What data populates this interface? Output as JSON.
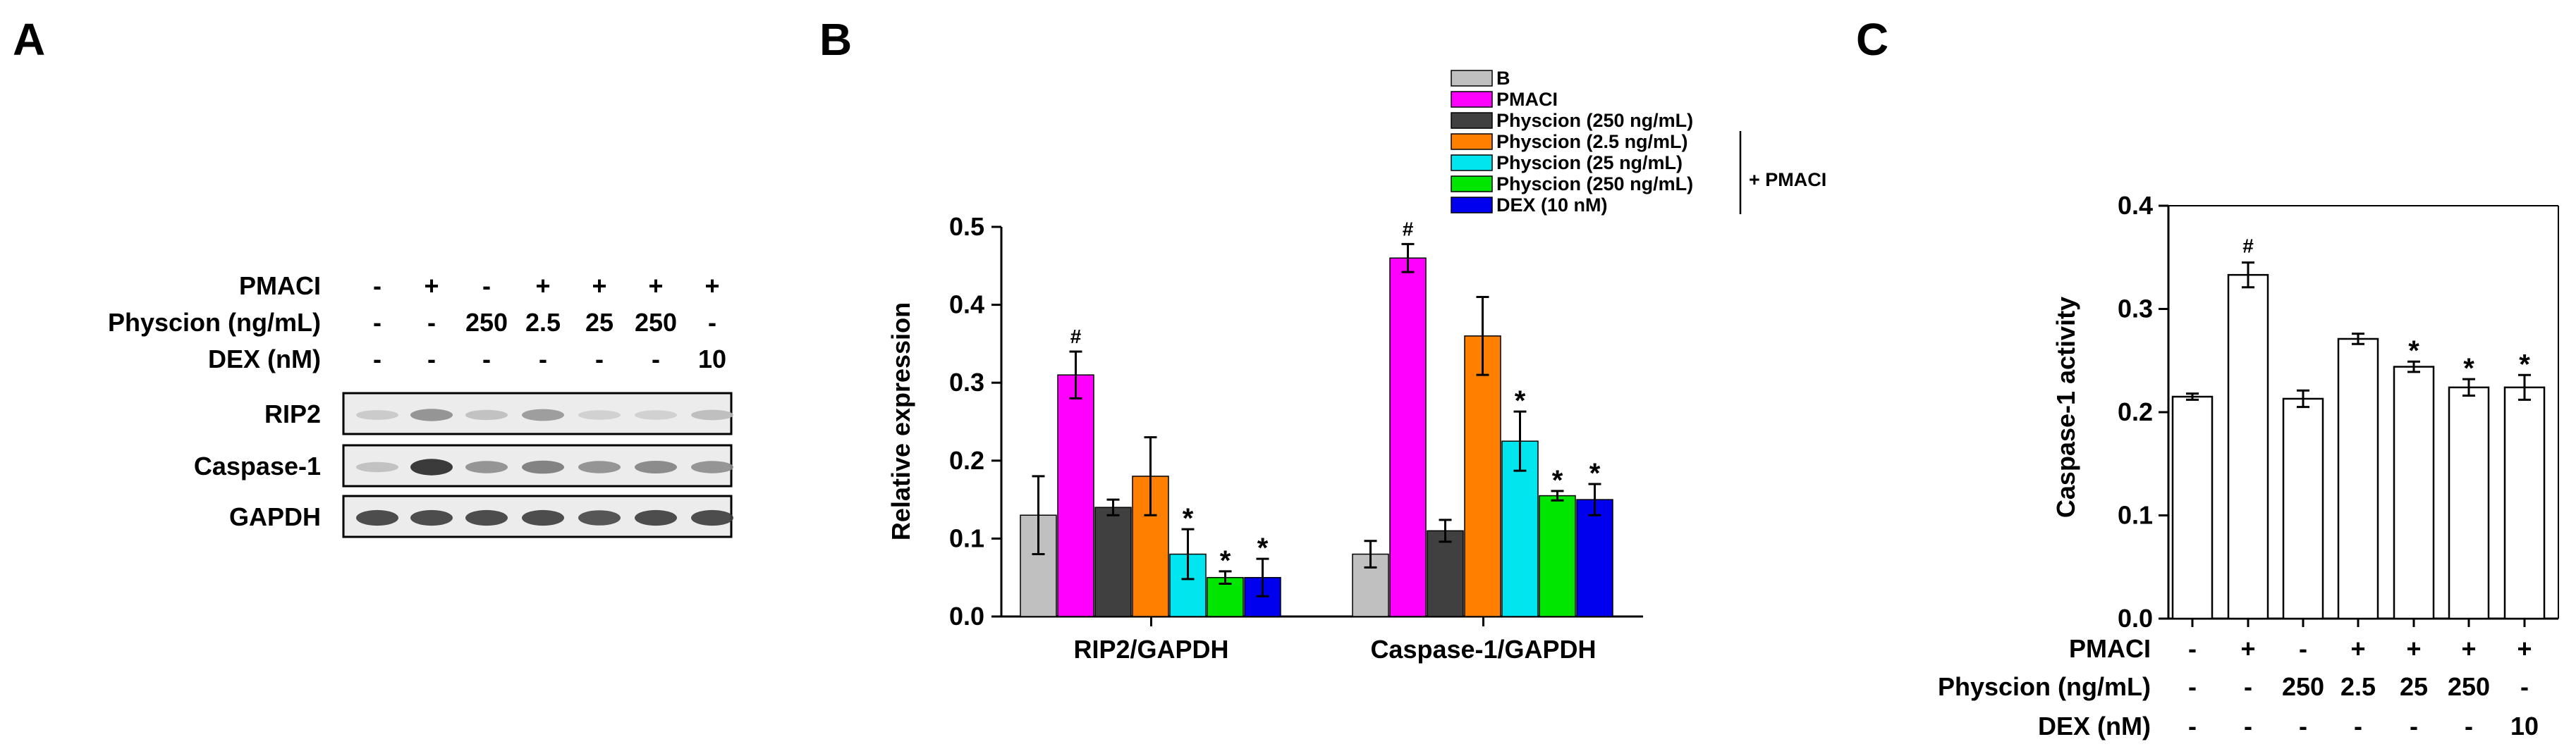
{
  "panels": {
    "a": "A",
    "b": "B",
    "c": "C"
  },
  "treatment_table": {
    "row_labels": [
      "PMACI",
      "Physcion (ng/mL)",
      "DEX (nM)"
    ],
    "pmaci": [
      "-",
      "+",
      "-",
      "+",
      "+",
      "+",
      "+"
    ],
    "physcion": [
      "-",
      "-",
      "250",
      "2.5",
      "25",
      "250",
      "-"
    ],
    "dex": [
      "-",
      "-",
      "-",
      "-",
      "-",
      "-",
      "10"
    ]
  },
  "blot": {
    "bands": [
      "RIP2",
      "Caspase-1",
      "GAPDH"
    ],
    "intensity": [
      [
        0.15,
        0.45,
        0.2,
        0.4,
        0.12,
        0.12,
        0.22
      ],
      [
        0.2,
        0.95,
        0.45,
        0.55,
        0.45,
        0.5,
        0.45
      ],
      [
        0.85,
        0.85,
        0.85,
        0.85,
        0.8,
        0.85,
        0.85
      ]
    ]
  },
  "colors": {
    "B": "#c0c0c0",
    "PMACI": "#ff00ff",
    "phys250": "#404040",
    "phys2_5": "#ff7f00",
    "phys25": "#00e5ee",
    "phys250_pmaci": "#00e600",
    "dex": "#0000ee"
  },
  "chart_data": [
    {
      "type": "bar",
      "title": "",
      "xlabel": "",
      "ylabel": "Relative expression",
      "ylim": [
        0,
        0.5
      ],
      "yticks": [
        "0.0",
        "0.1",
        "0.2",
        "0.3",
        "0.4",
        "0.5"
      ],
      "categories": [
        "RIP2/GAPDH",
        "Caspase-1/GAPDH"
      ],
      "series": [
        {
          "name": "B",
          "values": [
            0.13,
            0.08
          ],
          "errors": [
            0.05,
            0.017
          ],
          "marker": [
            "",
            ""
          ]
        },
        {
          "name": "PMACI",
          "values": [
            0.31,
            0.46
          ],
          "errors": [
            0.03,
            0.018
          ],
          "marker": [
            "#",
            "#"
          ]
        },
        {
          "name": "Physcion (250 ng/mL)",
          "values": [
            0.14,
            0.11
          ],
          "errors": [
            0.01,
            0.014
          ],
          "marker": [
            "",
            ""
          ]
        },
        {
          "name": "Physcion (2.5 ng/mL)",
          "values": [
            0.18,
            0.36
          ],
          "errors": [
            0.05,
            0.05
          ],
          "marker": [
            "",
            ""
          ]
        },
        {
          "name": "Physcion (25 ng/mL)",
          "values": [
            0.08,
            0.225
          ],
          "errors": [
            0.032,
            0.038
          ],
          "marker": [
            "*",
            "*"
          ]
        },
        {
          "name": "Physcion (250 ng/mL)",
          "values": [
            0.05,
            0.155
          ],
          "errors": [
            0.008,
            0.006
          ],
          "marker": [
            "*",
            "*"
          ]
        },
        {
          "name": "DEX (10 nM)",
          "values": [
            0.05,
            0.15
          ],
          "errors": [
            0.024,
            0.02
          ],
          "marker": [
            "*",
            "*"
          ]
        }
      ],
      "legend_note": "+ PMACI",
      "legend_position": "top-right"
    },
    {
      "type": "bar",
      "title": "",
      "xlabel": "",
      "ylabel": "Caspase-1 activity",
      "ylim": [
        0,
        0.4
      ],
      "yticks": [
        "0.0",
        "0.1",
        "0.2",
        "0.3",
        "0.4"
      ],
      "values": [
        0.215,
        0.333,
        0.213,
        0.271,
        0.244,
        0.224,
        0.224
      ],
      "errors": [
        0.003,
        0.012,
        0.008,
        0.005,
        0.005,
        0.008,
        0.012
      ],
      "marker": [
        "",
        "#",
        "",
        "",
        "*",
        "*",
        "*"
      ]
    }
  ]
}
